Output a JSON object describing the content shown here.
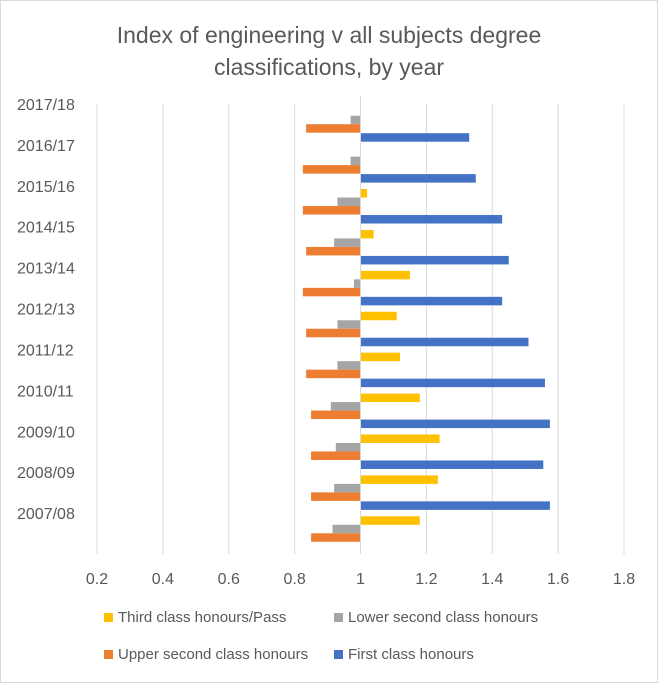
{
  "chart_data": {
    "type": "bar",
    "orientation": "horizontal",
    "title_lines": [
      "Index of engineering  v all subjects degree",
      "classifications, by year"
    ],
    "categories": [
      "2017/18",
      "2016/17",
      "2015/16",
      "2014/15",
      "2013/14",
      "2012/13",
      "2011/12",
      "2010/11",
      "2009/10",
      "2008/09",
      "2007/08"
    ],
    "xlim": [
      0.2,
      1.8
    ],
    "xticks": [
      "0.2",
      "0.4",
      "0.6",
      "0.8",
      "1",
      "1.2",
      "1.4",
      "1.6",
      "1.8"
    ],
    "baseline": 1,
    "grid": true,
    "legend_position": "bottom",
    "series": [
      {
        "name": "Third class honours/Pass",
        "color": "#ffc000",
        "values": [
          1.0,
          1.0,
          1.02,
          1.04,
          1.15,
          1.11,
          1.12,
          1.18,
          1.24,
          1.235,
          1.18
        ]
      },
      {
        "name": "Lower second class honours",
        "color": "#a5a5a5",
        "values": [
          0.97,
          0.97,
          0.93,
          0.92,
          0.98,
          0.93,
          0.93,
          0.91,
          0.925,
          0.92,
          0.915
        ]
      },
      {
        "name": "Upper second class honours",
        "color": "#ed7d31",
        "values": [
          0.835,
          0.825,
          0.825,
          0.835,
          0.825,
          0.835,
          0.835,
          0.85,
          0.85,
          0.85,
          0.85
        ]
      },
      {
        "name": "First class honours",
        "color": "#4472c4",
        "values": [
          1.33,
          1.35,
          1.43,
          1.45,
          1.43,
          1.51,
          1.56,
          1.575,
          1.555,
          1.575,
          null
        ]
      }
    ]
  }
}
